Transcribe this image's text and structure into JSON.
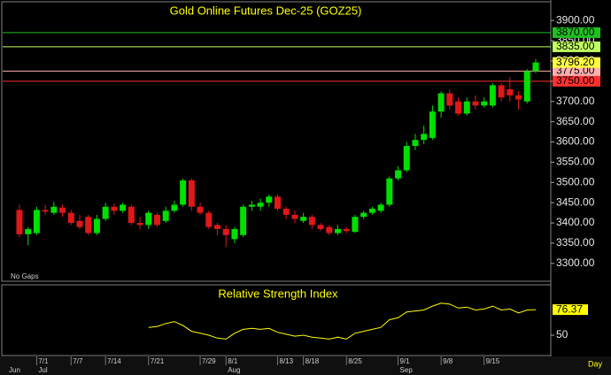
{
  "chart_data": [
    {
      "type": "candlestick",
      "title": "Gold Online Futures Dec-25 (GOZ25)",
      "note": "No Gaps",
      "period": "Day",
      "categories": [
        null,
        null,
        "7/1",
        null,
        null,
        null,
        "7/7",
        null,
        null,
        null,
        "7/14",
        null,
        null,
        null,
        null,
        "7/21",
        null,
        null,
        null,
        null,
        null,
        "7/29",
        null,
        null,
        "8/1",
        null,
        null,
        null,
        null,
        null,
        "8/13",
        null,
        null,
        "8/18",
        null,
        null,
        null,
        null,
        "8/25",
        null,
        null,
        null,
        null,
        null,
        "9/1",
        null,
        null,
        null,
        null,
        "9/8",
        null,
        null,
        null,
        null,
        "9/15",
        null,
        null,
        null,
        null,
        null,
        null
      ],
      "months": [
        "Jun",
        null,
        "Jul",
        null,
        null,
        null,
        null,
        null,
        null,
        null,
        null,
        null,
        null,
        null,
        null,
        null,
        null,
        null,
        null,
        null,
        null,
        null,
        null,
        null,
        "Aug",
        null,
        null,
        null,
        null,
        null,
        null,
        null,
        null,
        null,
        null,
        null,
        null,
        null,
        null,
        null,
        null,
        null,
        null,
        null,
        "Sep",
        null,
        null,
        null,
        null,
        null,
        null,
        null,
        null,
        null,
        null,
        null,
        null,
        null,
        null,
        null,
        null
      ],
      "open": [
        3432,
        3372,
        3375,
        3432,
        3425,
        3438,
        3425,
        3405,
        3415,
        3375,
        3410,
        3440,
        3430,
        3440,
        3400,
        3395,
        3420,
        3405,
        3430,
        3445,
        3505,
        3440,
        3425,
        3395,
        3385,
        3360,
        3370,
        3440,
        3440,
        3450,
        3465,
        3435,
        3420,
        3405,
        3415,
        3395,
        3390,
        3375,
        3385,
        3378,
        3415,
        3425,
        3430,
        3445,
        3510,
        3530,
        3590,
        3605,
        3610,
        3675,
        3720,
        3700,
        3670,
        3700,
        3690,
        3690,
        3740,
        3730,
        3715,
        3700,
        3775
      ],
      "high": [
        3445,
        3390,
        3440,
        3445,
        3452,
        3445,
        3432,
        3420,
        3420,
        3420,
        3450,
        3448,
        3450,
        3445,
        3415,
        3430,
        3425,
        3440,
        3455,
        3510,
        3510,
        3450,
        3430,
        3400,
        3395,
        3390,
        3445,
        3455,
        3460,
        3470,
        3470,
        3440,
        3430,
        3425,
        3420,
        3400,
        3395,
        3395,
        3390,
        3420,
        3430,
        3440,
        3450,
        3515,
        3540,
        3600,
        3620,
        3640,
        3690,
        3725,
        3730,
        3710,
        3710,
        3715,
        3710,
        3745,
        3745,
        3760,
        3725,
        3780,
        3805
      ],
      "low": [
        3365,
        3345,
        3370,
        3420,
        3420,
        3415,
        3395,
        3385,
        3370,
        3370,
        3405,
        3420,
        3425,
        3395,
        3385,
        3385,
        3390,
        3400,
        3425,
        3440,
        3430,
        3420,
        3385,
        3370,
        3340,
        3350,
        3365,
        3430,
        3430,
        3440,
        3430,
        3410,
        3400,
        3400,
        3385,
        3380,
        3370,
        3370,
        3375,
        3375,
        3410,
        3420,
        3425,
        3440,
        3505,
        3525,
        3580,
        3595,
        3605,
        3660,
        3680,
        3665,
        3665,
        3680,
        3685,
        3685,
        3700,
        3700,
        3680,
        3695,
        3770
      ],
      "close": [
        3372,
        3385,
        3432,
        3428,
        3440,
        3425,
        3400,
        3390,
        3375,
        3410,
        3440,
        3430,
        3445,
        3400,
        3395,
        3425,
        3395,
        3430,
        3445,
        3505,
        3440,
        3425,
        3390,
        3385,
        3370,
        3385,
        3440,
        3445,
        3450,
        3465,
        3435,
        3420,
        3410,
        3415,
        3395,
        3385,
        3375,
        3385,
        3380,
        3415,
        3425,
        3435,
        3445,
        3510,
        3530,
        3590,
        3605,
        3620,
        3675,
        3720,
        3690,
        3670,
        3700,
        3690,
        3700,
        3740,
        3710,
        3715,
        3705,
        3775,
        3796.2
      ],
      "up_color": "#00e000",
      "down_color": "#e01818",
      "last_price": {
        "value": 3796.2,
        "label": "3796.20",
        "color": "#ffff40"
      },
      "levels": [
        {
          "value": 3870,
          "label": "3870.00",
          "color": "#20c020"
        },
        {
          "value": 3835,
          "label": "3835.00",
          "color": "#c0ff60"
        },
        {
          "value": 3775,
          "label": "3775.00",
          "color": "#ffb0b0"
        },
        {
          "value": 3750,
          "label": "3750.00",
          "color": "#ff3030"
        }
      ],
      "ylim": [
        3256,
        3944
      ],
      "yticks": [
        {
          "value": 3300,
          "label": "3300.00"
        },
        {
          "value": 3350,
          "label": "3350.00"
        },
        {
          "value": 3400,
          "label": "3400.00"
        },
        {
          "value": 3450,
          "label": "3450.00"
        },
        {
          "value": 3500,
          "label": "3500.00"
        },
        {
          "value": 3550,
          "label": "3550.00"
        },
        {
          "value": 3600,
          "label": "3600.00"
        },
        {
          "value": 3650,
          "label": "3650.00"
        },
        {
          "value": 3700,
          "label": "3700.00"
        },
        {
          "value": 3750,
          "label": "3750.00"
        },
        {
          "value": 3800,
          "label": "3800.00"
        },
        {
          "value": 3850,
          "label": "3850.00"
        },
        {
          "value": 3900,
          "label": "3900.00"
        }
      ]
    },
    {
      "type": "line",
      "title": "Relative Strength Index",
      "color": "#ffff00",
      "values": [
        null,
        null,
        null,
        null,
        null,
        null,
        null,
        null,
        null,
        null,
        null,
        null,
        null,
        null,
        null,
        58,
        59,
        62,
        64,
        60,
        54,
        52,
        50,
        47,
        46,
        52,
        56,
        57,
        56,
        57,
        53,
        51,
        49,
        50,
        48,
        47,
        46,
        48,
        46,
        52,
        54,
        56,
        58,
        66,
        68,
        74,
        75,
        76,
        80,
        83,
        82,
        78,
        79,
        76,
        77,
        80,
        76,
        77,
        73,
        76,
        76.37
      ],
      "ylim": [
        29,
        102
      ],
      "yticks": [
        50
      ]
    }
  ]
}
